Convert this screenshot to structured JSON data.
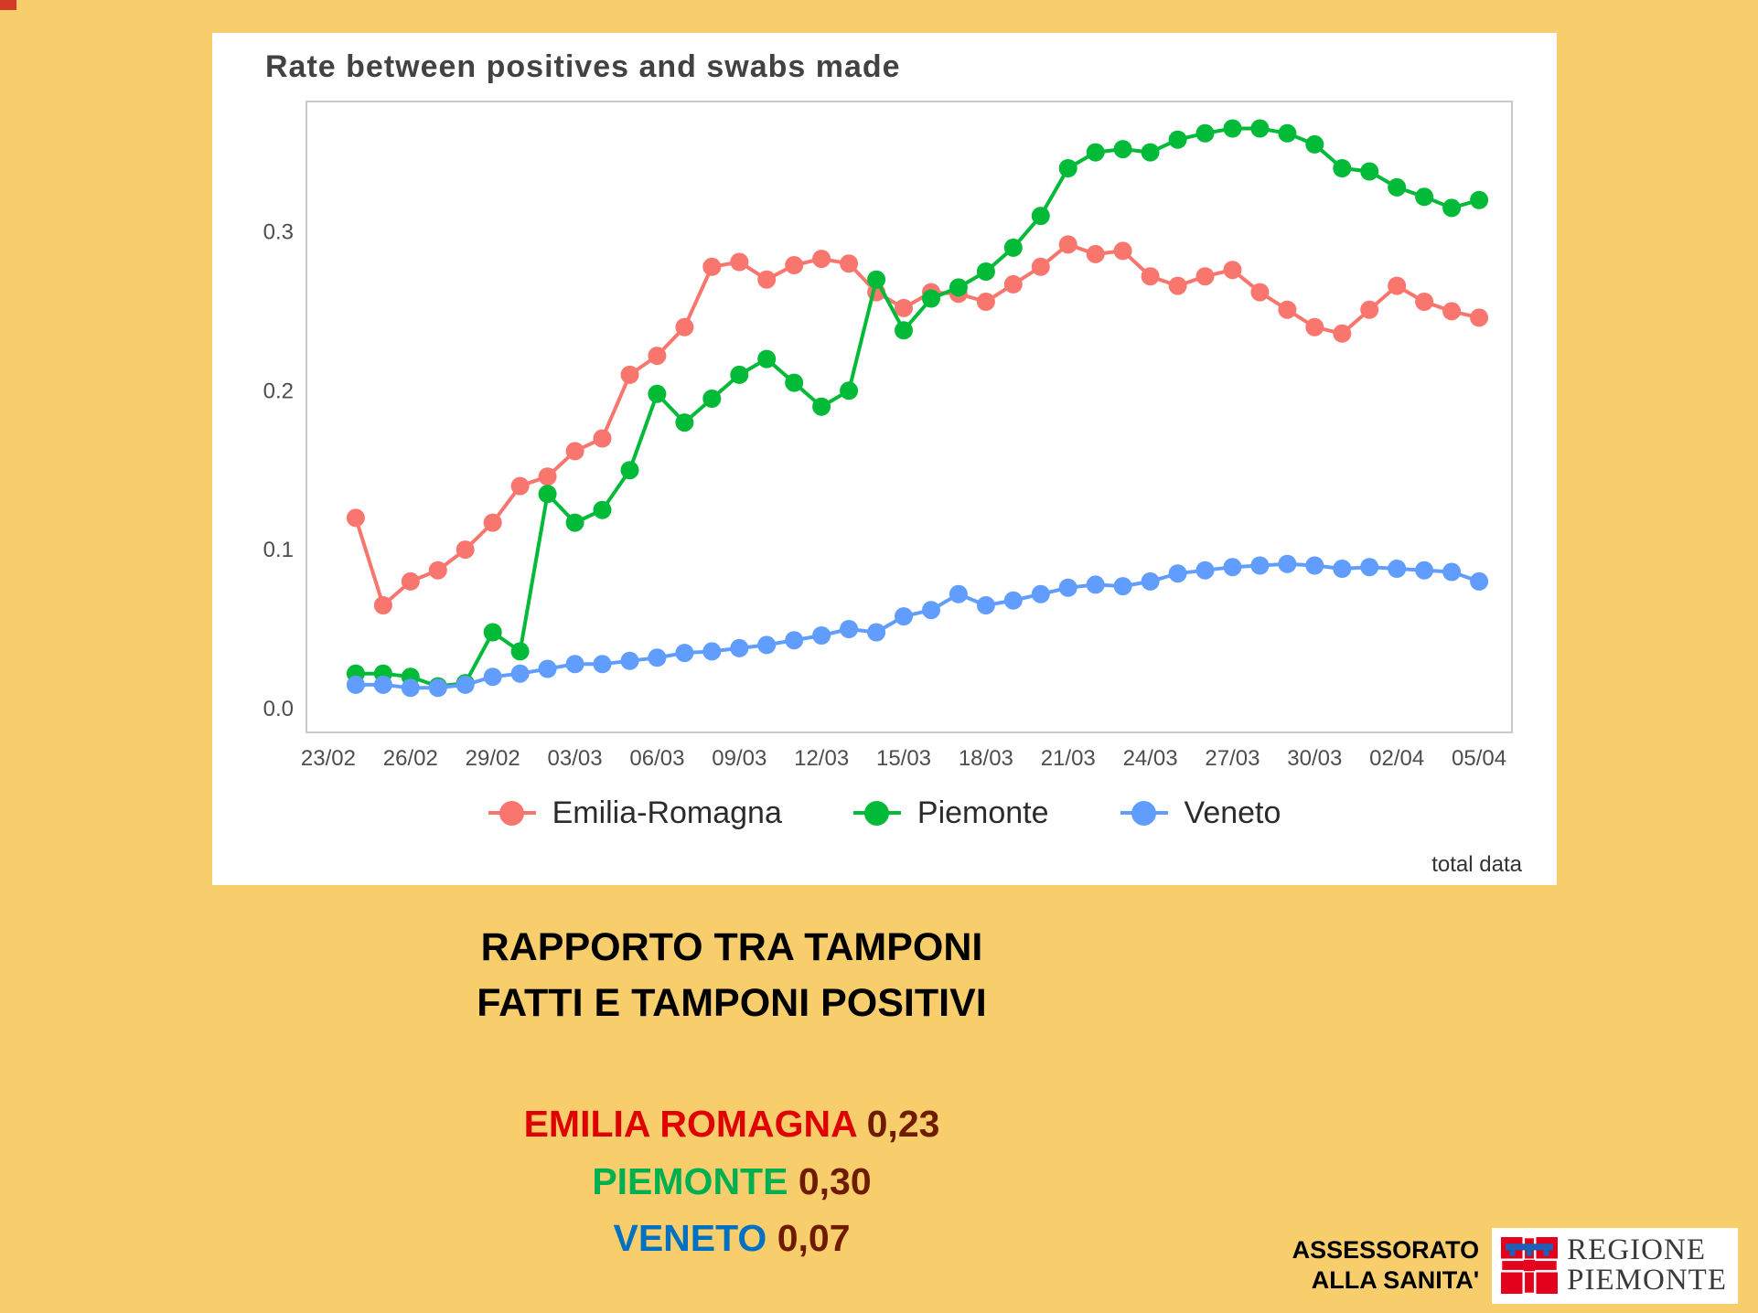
{
  "slide": {
    "background": "#F8CE6C"
  },
  "chart": {
    "title": "Rate between positives and swabs made",
    "footnote": "total data",
    "chart_data": {
      "type": "line",
      "title": "Rate between positives and swabs made",
      "xlabel": "",
      "ylabel": "",
      "legend_position": "bottom",
      "grid": false,
      "x_tick_labels": [
        "23/02",
        "26/02",
        "29/02",
        "03/03",
        "06/03",
        "09/03",
        "12/03",
        "15/03",
        "18/03",
        "21/03",
        "24/03",
        "27/03",
        "30/03",
        "02/04",
        "05/04"
      ],
      "yticks": [
        0.0,
        0.1,
        0.2,
        0.3
      ],
      "ylim": [
        0,
        0.37
      ],
      "dates": [
        "24/02",
        "25/02",
        "26/02",
        "27/02",
        "28/02",
        "29/02",
        "01/03",
        "02/03",
        "03/03",
        "04/03",
        "05/03",
        "06/03",
        "07/03",
        "08/03",
        "09/03",
        "10/03",
        "11/03",
        "12/03",
        "13/03",
        "14/03",
        "15/03",
        "16/03",
        "17/03",
        "18/03",
        "19/03",
        "20/03",
        "21/03",
        "22/03",
        "23/03",
        "24/03",
        "25/03",
        "26/03",
        "27/03",
        "28/03",
        "29/03",
        "30/03",
        "31/03",
        "01/04",
        "02/04",
        "03/04",
        "04/04",
        "05/04"
      ],
      "series": [
        {
          "name": "Emilia-Romagna",
          "color": "#F8766D",
          "values": [
            0.12,
            0.065,
            0.08,
            0.087,
            0.1,
            0.117,
            0.14,
            0.146,
            0.162,
            0.17,
            0.21,
            0.222,
            0.24,
            0.278,
            0.281,
            0.27,
            0.279,
            0.283,
            0.28,
            0.262,
            0.252,
            0.262,
            0.261,
            0.256,
            0.267,
            0.278,
            0.292,
            0.286,
            0.288,
            0.272,
            0.266,
            0.272,
            0.276,
            0.262,
            0.251,
            0.24,
            0.236,
            0.251,
            0.266,
            0.256,
            0.25,
            0.246
          ]
        },
        {
          "name": "Piemonte",
          "color": "#00BA38",
          "values": [
            0.022,
            0.022,
            0.02,
            0.014,
            0.016,
            0.048,
            0.036,
            0.135,
            0.117,
            0.125,
            0.15,
            0.198,
            0.18,
            0.195,
            0.21,
            0.22,
            0.205,
            0.19,
            0.2,
            0.27,
            0.238,
            0.258,
            0.265,
            0.275,
            0.29,
            0.31,
            0.34,
            0.35,
            0.352,
            0.35,
            0.358,
            0.362,
            0.365,
            0.365,
            0.362,
            0.355,
            0.34,
            0.338,
            0.328,
            0.322,
            0.315,
            0.32
          ]
        },
        {
          "name": "Veneto",
          "color": "#619CFF",
          "values": [
            0.015,
            0.015,
            0.013,
            0.013,
            0.015,
            0.02,
            0.022,
            0.025,
            0.028,
            0.028,
            0.03,
            0.032,
            0.035,
            0.036,
            0.038,
            0.04,
            0.043,
            0.046,
            0.05,
            0.048,
            0.058,
            0.062,
            0.072,
            0.065,
            0.068,
            0.072,
            0.076,
            0.078,
            0.077,
            0.08,
            0.085,
            0.087,
            0.089,
            0.09,
            0.091,
            0.09,
            0.088,
            0.089,
            0.088,
            0.087,
            0.086,
            0.08
          ]
        }
      ]
    }
  },
  "caption": {
    "line1": "RAPPORTO TRA TAMPONI",
    "line2": "FATTI E TAMPONI POSITIVI"
  },
  "stats": {
    "value_color": "#6E1B00",
    "items": [
      {
        "label": "EMILIA ROMAGNA",
        "value": "0,23",
        "color": "#DF0000"
      },
      {
        "label": "PIEMONTE",
        "value": "0,30",
        "color": "#00B050"
      },
      {
        "label": "VENETO",
        "value": "0,07",
        "color": "#0070C0"
      }
    ]
  },
  "footer": {
    "assessorato_line1": "ASSESSORATO",
    "assessorato_line2": "ALLA SANITA'",
    "logo_line1": "REGIONE",
    "logo_line2": "PIEMONTE"
  }
}
